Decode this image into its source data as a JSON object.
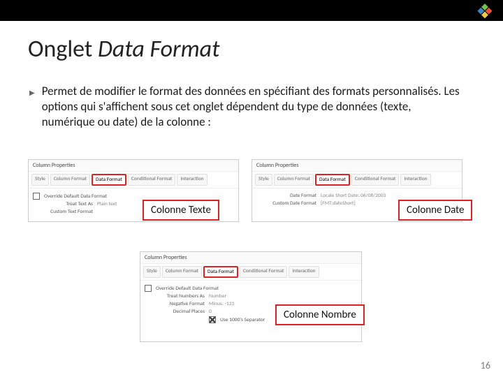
{
  "title": {
    "plain": "Onglet ",
    "italic": "Data Format"
  },
  "bullet_text": "Permet de modifier le format des données en spécifiant des formats personnalisés. Les options qui s'affichent sous cet onglet dépendent du type de données (texte, numérique ou date) de la colonne :",
  "panels": {
    "header": "Column Properties",
    "tabs": {
      "style": "Style",
      "column_format": "Column Format",
      "data_format": "Data Format",
      "conditional_format": "Conditional Format",
      "interaction": "Interaction"
    },
    "text_panel": {
      "override_label": "Override Default Data Format",
      "row1_label": "Treat Text As",
      "row1_value": "Plain text",
      "row2_label": "Custom Text Format"
    },
    "date_panel": {
      "row1_label": "Date Format",
      "row1_value": "Locale Short Date: 06/08/2003",
      "row2_label": "Custom Date Format",
      "row2_value": "[FMT:dateShort]"
    },
    "number_panel": {
      "override_label": "Override Default Data Format",
      "row1_label": "Treat Numbers As",
      "row1_value": "Number",
      "row2_label": "Negative Format",
      "row2_value": "Minus: -123",
      "row3_label": "Decimal Places",
      "row3_value": "0",
      "row4_label": "Use 1000's Separator"
    }
  },
  "callouts": {
    "text": "Colonne Texte",
    "date": "Colonne Date",
    "number": "Colonne Nombre"
  },
  "logo_colors": [
    "#73c04c",
    "#e94f3a",
    "#3f86c7",
    "#f2c744"
  ],
  "accent_red": "#d22",
  "page_number": "16"
}
